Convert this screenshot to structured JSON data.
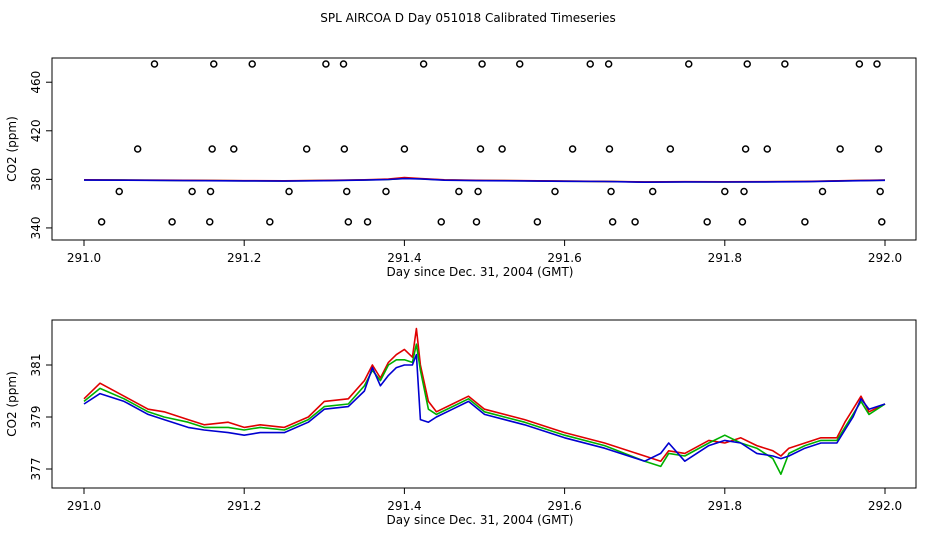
{
  "title": "SPL AIRCOA D  Day 051018  Calibrated Timeseries",
  "colors": {
    "red": "#e00000",
    "green": "#00b000",
    "blue": "#0000d0",
    "axis": "#000000"
  },
  "chart_data": [
    {
      "type": "scatter",
      "xlabel": "Day since Dec. 31, 2004 (GMT)",
      "ylabel": "CO2 (ppm)",
      "xlim": [
        291.0,
        292.0
      ],
      "ylim": [
        335,
        475
      ],
      "xticks": [
        "291.0",
        "291.2",
        "291.4",
        "291.6",
        "291.8",
        "292.0"
      ],
      "yticks": [
        "340",
        "380",
        "420",
        "460"
      ],
      "lines": [
        {
          "color": "green",
          "x": [
            291.0,
            291.05,
            291.1,
            291.15,
            291.2,
            291.25,
            291.3,
            291.35,
            291.38,
            291.4,
            291.42,
            291.45,
            291.5,
            291.55,
            291.6,
            291.65,
            291.7,
            291.75,
            291.8,
            291.85,
            291.9,
            291.95,
            292.0
          ],
          "y": [
            379.5,
            379.4,
            379.2,
            379.0,
            378.8,
            378.7,
            379.0,
            379.5,
            380.0,
            380.8,
            380.5,
            379.5,
            379.0,
            378.8,
            378.5,
            378.3,
            377.8,
            378.0,
            377.9,
            378.0,
            378.2,
            378.8,
            379.3
          ]
        },
        {
          "color": "red",
          "x": [
            291.0,
            291.05,
            291.1,
            291.15,
            291.2,
            291.25,
            291.3,
            291.35,
            291.38,
            291.4,
            291.42,
            291.45,
            291.5,
            291.55,
            291.6,
            291.65,
            291.7,
            291.75,
            291.8,
            291.85,
            291.9,
            291.95,
            292.0
          ],
          "y": [
            379.6,
            379.5,
            379.3,
            379.1,
            378.9,
            378.8,
            379.1,
            379.6,
            380.2,
            381.5,
            380.6,
            379.6,
            379.1,
            378.9,
            378.6,
            378.3,
            377.9,
            378.1,
            378.0,
            378.1,
            378.3,
            378.9,
            379.4
          ]
        },
        {
          "color": "blue",
          "x": [
            291.0,
            291.05,
            291.1,
            291.15,
            291.2,
            291.25,
            291.3,
            291.35,
            291.38,
            291.4,
            291.42,
            291.45,
            291.5,
            291.55,
            291.6,
            291.65,
            291.7,
            291.75,
            291.8,
            291.85,
            291.9,
            291.95,
            292.0
          ],
          "y": [
            379.4,
            379.3,
            379.1,
            378.9,
            378.7,
            378.6,
            378.9,
            379.4,
            379.9,
            380.6,
            380.4,
            379.3,
            378.9,
            378.7,
            378.4,
            378.2,
            377.7,
            377.9,
            377.8,
            377.9,
            378.1,
            378.7,
            379.2
          ]
        }
      ],
      "points": [
        [
          291.022,
          345
        ],
        [
          291.088,
          475
        ],
        [
          291.067,
          405
        ],
        [
          291.044,
          370
        ],
        [
          291.11,
          345
        ],
        [
          291.135,
          370
        ],
        [
          291.158,
          370
        ],
        [
          291.16,
          405
        ],
        [
          291.162,
          475
        ],
        [
          291.157,
          345
        ],
        [
          291.187,
          405
        ],
        [
          291.21,
          475
        ],
        [
          291.232,
          345
        ],
        [
          291.256,
          370
        ],
        [
          291.278,
          405
        ],
        [
          291.302,
          475
        ],
        [
          291.324,
          475
        ],
        [
          291.325,
          405
        ],
        [
          291.328,
          370
        ],
        [
          291.33,
          345
        ],
        [
          291.354,
          345
        ],
        [
          291.377,
          370
        ],
        [
          291.4,
          405
        ],
        [
          291.424,
          475
        ],
        [
          291.446,
          345
        ],
        [
          291.468,
          370
        ],
        [
          291.49,
          345
        ],
        [
          291.492,
          370
        ],
        [
          291.495,
          405
        ],
        [
          291.497,
          475
        ],
        [
          291.522,
          405
        ],
        [
          291.544,
          475
        ],
        [
          291.566,
          345
        ],
        [
          291.588,
          370
        ],
        [
          291.61,
          405
        ],
        [
          291.632,
          475
        ],
        [
          291.655,
          475
        ],
        [
          291.656,
          405
        ],
        [
          291.658,
          370
        ],
        [
          291.66,
          345
        ],
        [
          291.688,
          345
        ],
        [
          291.71,
          370
        ],
        [
          291.732,
          405
        ],
        [
          291.755,
          475
        ],
        [
          291.778,
          345
        ],
        [
          291.8,
          370
        ],
        [
          291.822,
          345
        ],
        [
          291.824,
          370
        ],
        [
          291.826,
          405
        ],
        [
          291.828,
          475
        ],
        [
          291.853,
          405
        ],
        [
          291.875,
          475
        ],
        [
          291.9,
          345
        ],
        [
          291.922,
          370
        ],
        [
          291.944,
          405
        ],
        [
          291.968,
          475
        ],
        [
          291.99,
          475
        ],
        [
          291.992,
          405
        ],
        [
          291.994,
          370
        ],
        [
          291.996,
          345
        ]
      ]
    },
    {
      "type": "line",
      "xlabel": "Day since Dec. 31, 2004 (GMT)",
      "ylabel": "CO2 (ppm)",
      "xlim": [
        291.0,
        292.0
      ],
      "ylim": [
        376.5,
        382.5
      ],
      "xticks": [
        "291.0",
        "291.2",
        "291.4",
        "291.6",
        "291.8",
        "292.0"
      ],
      "yticks": [
        "377",
        "379",
        "381"
      ],
      "series": [
        {
          "color": "red",
          "x": [
            291.0,
            291.02,
            291.05,
            291.08,
            291.1,
            291.13,
            291.15,
            291.18,
            291.2,
            291.22,
            291.25,
            291.28,
            291.3,
            291.33,
            291.35,
            291.36,
            291.37,
            291.38,
            291.39,
            291.4,
            291.41,
            291.415,
            291.42,
            291.43,
            291.44,
            291.46,
            291.48,
            291.5,
            291.55,
            291.6,
            291.65,
            291.7,
            291.72,
            291.73,
            291.75,
            291.78,
            291.8,
            291.82,
            291.84,
            291.86,
            291.87,
            291.88,
            291.9,
            291.92,
            291.94,
            291.95,
            291.96,
            291.97,
            291.98,
            292.0
          ],
          "y": [
            379.7,
            380.3,
            379.8,
            379.3,
            379.2,
            378.9,
            378.7,
            378.8,
            378.6,
            378.7,
            378.6,
            379.0,
            379.6,
            379.7,
            380.4,
            381.0,
            380.5,
            381.1,
            381.4,
            381.6,
            381.3,
            382.4,
            381.0,
            379.6,
            379.2,
            379.5,
            379.8,
            379.3,
            378.9,
            378.4,
            378.0,
            377.5,
            377.3,
            377.7,
            377.6,
            378.1,
            378.0,
            378.2,
            377.9,
            377.7,
            377.5,
            377.8,
            378.0,
            378.2,
            378.2,
            378.8,
            379.3,
            379.8,
            379.2,
            379.5
          ]
        },
        {
          "color": "green",
          "x": [
            291.0,
            291.02,
            291.05,
            291.08,
            291.1,
            291.13,
            291.15,
            291.18,
            291.2,
            291.22,
            291.25,
            291.28,
            291.3,
            291.33,
            291.35,
            291.36,
            291.37,
            291.38,
            291.39,
            291.4,
            291.41,
            291.415,
            291.42,
            291.43,
            291.44,
            291.46,
            291.48,
            291.5,
            291.55,
            291.6,
            291.65,
            291.7,
            291.72,
            291.73,
            291.75,
            291.78,
            291.8,
            291.82,
            291.84,
            291.86,
            291.87,
            291.88,
            291.9,
            291.92,
            291.94,
            291.95,
            291.96,
            291.97,
            291.98,
            292.0
          ],
          "y": [
            379.6,
            380.1,
            379.7,
            379.2,
            379.0,
            378.8,
            378.6,
            378.6,
            378.5,
            378.6,
            378.5,
            378.9,
            379.4,
            379.5,
            380.2,
            380.8,
            380.4,
            381.0,
            381.2,
            381.2,
            381.1,
            381.8,
            380.8,
            379.3,
            379.1,
            379.4,
            379.7,
            379.2,
            378.8,
            378.3,
            377.9,
            377.3,
            377.1,
            377.6,
            377.5,
            378.0,
            378.3,
            378.0,
            377.8,
            377.4,
            376.8,
            377.6,
            377.9,
            378.1,
            378.1,
            378.6,
            379.1,
            379.6,
            379.1,
            379.5
          ]
        },
        {
          "color": "blue",
          "x": [
            291.0,
            291.02,
            291.05,
            291.08,
            291.1,
            291.13,
            291.15,
            291.18,
            291.2,
            291.22,
            291.25,
            291.28,
            291.3,
            291.33,
            291.35,
            291.36,
            291.37,
            291.38,
            291.39,
            291.4,
            291.41,
            291.415,
            291.42,
            291.43,
            291.44,
            291.46,
            291.48,
            291.5,
            291.55,
            291.6,
            291.65,
            291.7,
            291.72,
            291.73,
            291.75,
            291.78,
            291.8,
            291.82,
            291.84,
            291.86,
            291.87,
            291.88,
            291.9,
            291.92,
            291.94,
            291.95,
            291.96,
            291.97,
            291.98,
            292.0
          ],
          "y": [
            379.5,
            379.9,
            379.6,
            379.1,
            378.9,
            378.6,
            378.5,
            378.4,
            378.3,
            378.4,
            378.4,
            378.8,
            379.3,
            379.4,
            380.0,
            380.9,
            380.2,
            380.6,
            380.9,
            381.0,
            381.0,
            381.4,
            378.9,
            378.8,
            379.0,
            379.3,
            379.6,
            379.1,
            378.7,
            378.2,
            377.8,
            377.3,
            377.6,
            378.0,
            377.3,
            377.9,
            378.1,
            378.0,
            377.6,
            377.5,
            377.4,
            377.5,
            377.8,
            378.0,
            378.0,
            378.5,
            379.0,
            379.7,
            379.3,
            379.5
          ]
        }
      ]
    }
  ]
}
